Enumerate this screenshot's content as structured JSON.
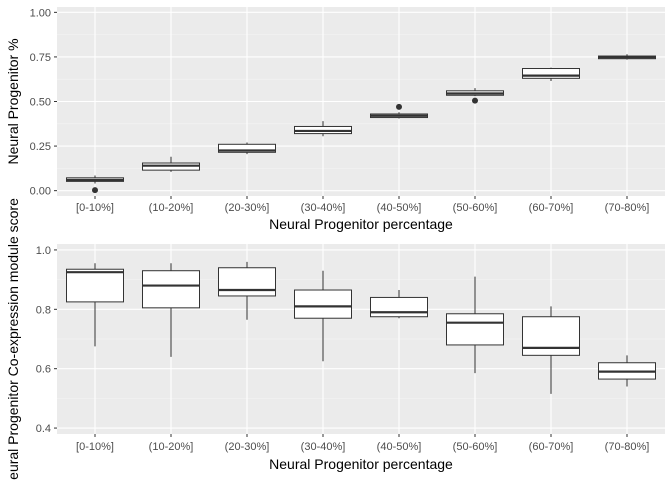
{
  "chart_data": [
    {
      "type": "boxplot",
      "xlabel": "Neural Progenitor percentage",
      "ylabel": "Neural Progenitor %",
      "ylim": [
        -0.03,
        1.03
      ],
      "yticks": [
        0.0,
        0.25,
        0.5,
        0.75,
        1.0
      ],
      "ytick_labels": [
        "0.00",
        "0.25",
        "0.50",
        "0.75",
        "1.00"
      ],
      "grid": true,
      "categories": [
        "[0-10%]",
        "(10-20%]",
        "(20-30%]",
        "(30-40%]",
        "(40-50%]",
        "(50-60%]",
        "(60-70%]",
        "(70-80%]"
      ],
      "boxes": [
        {
          "min": 0.04,
          "q1": 0.052,
          "median": 0.06,
          "q3": 0.072,
          "max": 0.085,
          "outliers": [
            0.003
          ]
        },
        {
          "min": 0.105,
          "q1": 0.115,
          "median": 0.14,
          "q3": 0.155,
          "max": 0.19,
          "outliers": []
        },
        {
          "min": 0.205,
          "q1": 0.215,
          "median": 0.225,
          "q3": 0.26,
          "max": 0.27,
          "outliers": []
        },
        {
          "min": 0.305,
          "q1": 0.32,
          "median": 0.335,
          "q3": 0.36,
          "max": 0.39,
          "outliers": []
        },
        {
          "min": 0.405,
          "q1": 0.41,
          "median": 0.42,
          "q3": 0.43,
          "max": 0.44,
          "outliers": [
            0.47
          ]
        },
        {
          "min": 0.53,
          "q1": 0.535,
          "median": 0.545,
          "q3": 0.56,
          "max": 0.575,
          "outliers": [
            0.505
          ]
        },
        {
          "min": 0.615,
          "q1": 0.63,
          "median": 0.645,
          "q3": 0.685,
          "max": 0.69,
          "outliers": []
        },
        {
          "min": 0.735,
          "q1": 0.74,
          "median": 0.748,
          "q3": 0.755,
          "max": 0.765,
          "outliers": []
        }
      ]
    },
    {
      "type": "boxplot",
      "xlabel": "Neural Progenitor percentage",
      "ylabel": "eural Progenitor Co-expression module score",
      "ylim": [
        0.38,
        1.02
      ],
      "yticks": [
        0.4,
        0.6,
        0.8,
        1.0
      ],
      "ytick_labels": [
        "0.4",
        "0.6",
        "0.8",
        "1.0"
      ],
      "grid": true,
      "categories": [
        "[0-10%]",
        "(10-20%]",
        "(20-30%]",
        "(30-40%]",
        "(40-50%]",
        "(50-60%]",
        "(60-70%]",
        "(70-80%]"
      ],
      "boxes": [
        {
          "min": 0.675,
          "q1": 0.825,
          "median": 0.925,
          "q3": 0.935,
          "max": 0.955,
          "outliers": []
        },
        {
          "min": 0.64,
          "q1": 0.805,
          "median": 0.88,
          "q3": 0.93,
          "max": 0.955,
          "outliers": []
        },
        {
          "min": 0.765,
          "q1": 0.845,
          "median": 0.865,
          "q3": 0.94,
          "max": 0.96,
          "outliers": []
        },
        {
          "min": 0.625,
          "q1": 0.77,
          "median": 0.81,
          "q3": 0.865,
          "max": 0.93,
          "outliers": []
        },
        {
          "min": 0.77,
          "q1": 0.775,
          "median": 0.79,
          "q3": 0.84,
          "max": 0.865,
          "outliers": []
        },
        {
          "min": 0.585,
          "q1": 0.68,
          "median": 0.755,
          "q3": 0.785,
          "max": 0.91,
          "outliers": []
        },
        {
          "min": 0.515,
          "q1": 0.645,
          "median": 0.67,
          "q3": 0.775,
          "max": 0.81,
          "outliers": []
        },
        {
          "min": 0.54,
          "q1": 0.565,
          "median": 0.59,
          "q3": 0.62,
          "max": 0.645,
          "outliers": []
        }
      ]
    }
  ]
}
